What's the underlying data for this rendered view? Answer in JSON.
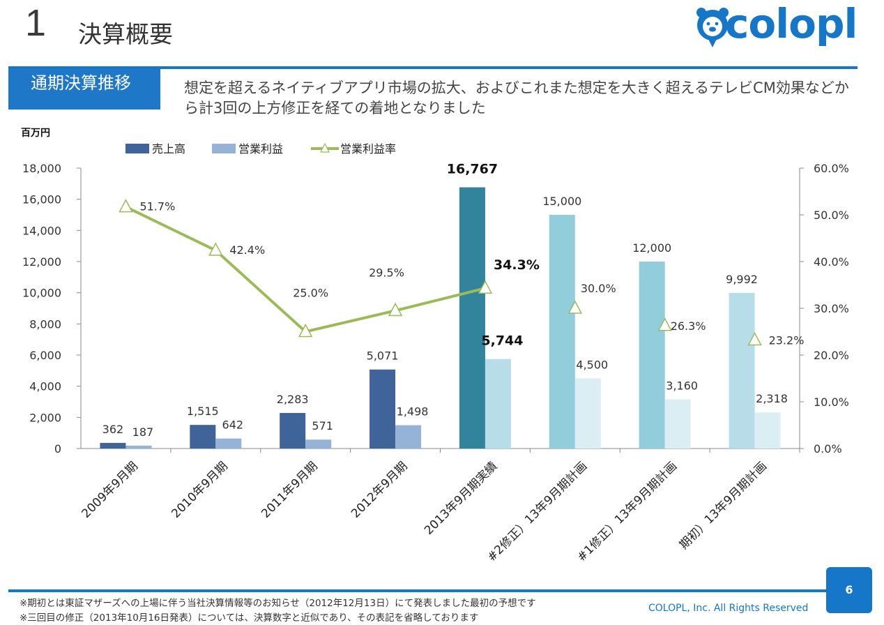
{
  "header": {
    "section_number": "1",
    "title": "決算概要",
    "logo_text": "colopl"
  },
  "section_tag": "通期決算推移",
  "subtitle": "想定を超えるネイティブアプリ市場の拡大、およびこれまた想定を大きく超えるテレビCM効果などから計3回の上方修正を経ての着地となりました",
  "unit_label": "百万円",
  "chart_data": {
    "type": "bar",
    "categories": [
      "2009年9月期",
      "2010年9月期",
      "2011年9月期",
      "2012年9月期",
      "2013年9月期実績",
      "#2修正）13年9月期計画",
      "#1修正）13年9月期計画",
      "期初）13年9月期計画"
    ],
    "series": [
      {
        "name": "売上高",
        "type": "bar",
        "axis": "left",
        "values": [
          362,
          1515,
          2283,
          5071,
          16767,
          15000,
          12000,
          9992
        ],
        "labels": [
          "362",
          "1,515",
          "2,283",
          "5,071",
          "16,767",
          "15,000",
          "12,000",
          "9,992"
        ]
      },
      {
        "name": "営業利益",
        "type": "bar",
        "axis": "left",
        "values": [
          187,
          642,
          571,
          1498,
          5744,
          4500,
          3160,
          2318
        ],
        "labels": [
          "187",
          "642",
          "571",
          "1,498",
          "5,744",
          "4,500",
          "3,160",
          "2,318"
        ]
      },
      {
        "name": "営業利益率",
        "type": "line",
        "axis": "right",
        "values": [
          51.7,
          42.4,
          25.0,
          29.5,
          34.3,
          30.0,
          26.3,
          23.2
        ],
        "labels": [
          "51.7%",
          "42.4%",
          "25.0%",
          "29.5%",
          "34.3%",
          "30.0%",
          "26.3%",
          "23.2%"
        ],
        "line_points": 5
      }
    ],
    "y_left": {
      "ylim": [
        0,
        18000
      ],
      "ticks": [
        "0",
        "2,000",
        "4,000",
        "6,000",
        "8,000",
        "10,000",
        "12,000",
        "14,000",
        "16,000",
        "18,000"
      ]
    },
    "y_right": {
      "ylim": [
        0,
        60
      ],
      "ticks": [
        "0.0%",
        "10.0%",
        "20.0%",
        "30.0%",
        "40.0%",
        "50.0%",
        "60.0%"
      ]
    },
    "highlight_category": "2013年9月期実績",
    "colors": {
      "sales": [
        "#3f6499",
        "#3f6499",
        "#3f6499",
        "#3f6499",
        "#31849b",
        "#92cddc",
        "#92cddc",
        "#b6dde8"
      ],
      "profit": [
        "#95b3d7",
        "#95b3d7",
        "#95b3d7",
        "#95b3d7",
        "#b7dee8",
        "#daeef3",
        "#daeef3",
        "#daeef3"
      ],
      "margin_line": "#9bbb59",
      "legend_sales": "#3f6499",
      "legend_profit": "#95b3d7"
    },
    "legend_position": "top",
    "grid": false
  },
  "footnotes": [
    "※期初とは東証マザーズへの上場に伴う当社決算情報等のお知らせ（2012年12月13日）にて発表しました最初の予想です",
    "※三回目の修正（2013年10月16日発表）については、決算数字と近似であり、その表記を省略しております"
  ],
  "copyright": "COLOPL, Inc. All Rights Reserved",
  "page_number": "6",
  "brand_color": "#1677c8"
}
